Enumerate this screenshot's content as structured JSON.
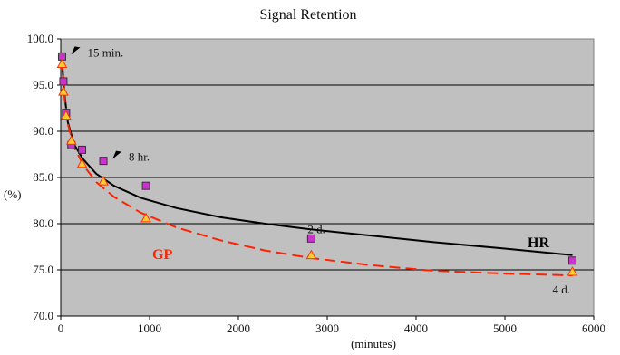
{
  "chart_data": {
    "type": "scatter",
    "title": "Signal Retention",
    "xlabel": "(minutes)",
    "ylabel": "(%)",
    "xlim": [
      0,
      6000
    ],
    "ylim": [
      70.0,
      100.0
    ],
    "x_ticks": [
      0,
      1000,
      2000,
      3000,
      4000,
      5000,
      6000
    ],
    "y_ticks": [
      "70.0",
      "75.0",
      "80.0",
      "85.0",
      "90.0",
      "95.0",
      "100.0"
    ],
    "grid": "horizontal",
    "plot_background": "#c0c0c0",
    "series": [
      {
        "name": "HR",
        "marker": "square",
        "marker_color": "#cc33cc",
        "line_color": "#000000",
        "line_style": "solid",
        "points": [
          {
            "x": 15,
            "y": 98.1
          },
          {
            "x": 30,
            "y": 95.4
          },
          {
            "x": 60,
            "y": 92.0
          },
          {
            "x": 120,
            "y": 88.5
          },
          {
            "x": 240,
            "y": 88.0
          },
          {
            "x": 480,
            "y": 86.8
          },
          {
            "x": 960,
            "y": 84.1
          },
          {
            "x": 2820,
            "y": 78.4
          },
          {
            "x": 5760,
            "y": 76.0
          }
        ],
        "fit": [
          {
            "x": 15,
            "y": 97.5
          },
          {
            "x": 40,
            "y": 94.2
          },
          {
            "x": 80,
            "y": 91.0
          },
          {
            "x": 150,
            "y": 88.6
          },
          {
            "x": 250,
            "y": 87.0
          },
          {
            "x": 400,
            "y": 85.4
          },
          {
            "x": 600,
            "y": 84.1
          },
          {
            "x": 900,
            "y": 82.8
          },
          {
            "x": 1300,
            "y": 81.7
          },
          {
            "x": 1800,
            "y": 80.7
          },
          {
            "x": 2300,
            "y": 80.0
          },
          {
            "x": 2800,
            "y": 79.4
          },
          {
            "x": 3500,
            "y": 78.7
          },
          {
            "x": 4200,
            "y": 78.0
          },
          {
            "x": 5000,
            "y": 77.3
          },
          {
            "x": 5760,
            "y": 76.6
          }
        ]
      },
      {
        "name": "GP",
        "marker": "triangle",
        "marker_color": "#ffcc33",
        "line_color": "#ff2200",
        "line_style": "dashed",
        "points": [
          {
            "x": 15,
            "y": 97.3
          },
          {
            "x": 30,
            "y": 94.3
          },
          {
            "x": 60,
            "y": 91.7
          },
          {
            "x": 120,
            "y": 89.0
          },
          {
            "x": 240,
            "y": 86.5
          },
          {
            "x": 480,
            "y": 84.6
          },
          {
            "x": 960,
            "y": 80.6
          },
          {
            "x": 2820,
            "y": 76.6
          },
          {
            "x": 5760,
            "y": 74.8
          }
        ],
        "fit": [
          {
            "x": 15,
            "y": 97.8
          },
          {
            "x": 40,
            "y": 93.8
          },
          {
            "x": 80,
            "y": 90.8
          },
          {
            "x": 150,
            "y": 88.3
          },
          {
            "x": 250,
            "y": 86.4
          },
          {
            "x": 400,
            "y": 84.5
          },
          {
            "x": 600,
            "y": 82.9
          },
          {
            "x": 900,
            "y": 81.2
          },
          {
            "x": 1300,
            "y": 79.6
          },
          {
            "x": 1800,
            "y": 78.2
          },
          {
            "x": 2300,
            "y": 77.1
          },
          {
            "x": 2800,
            "y": 76.3
          },
          {
            "x": 3500,
            "y": 75.5
          },
          {
            "x": 4200,
            "y": 74.9
          },
          {
            "x": 5000,
            "y": 74.6
          },
          {
            "x": 5760,
            "y": 74.4
          }
        ]
      }
    ],
    "annotations": [
      {
        "text": "15 min.",
        "x": 15,
        "y": 98.1,
        "arrow": true
      },
      {
        "text": "8 hr.",
        "x": 480,
        "y": 86.8,
        "arrow": true
      },
      {
        "text": "2 d.",
        "x": 2820,
        "y": 78.4,
        "arrow": false
      },
      {
        "text": "4 d.",
        "x": 5760,
        "y": 74.8,
        "arrow": false
      }
    ]
  }
}
